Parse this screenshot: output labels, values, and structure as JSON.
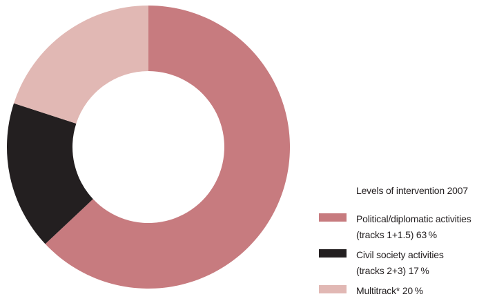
{
  "chart_data": {
    "type": "pie",
    "donut": true,
    "title": "",
    "legend_title": "Levels of intervention 2007",
    "legend_placement": "bottom-right",
    "series": [
      {
        "name_line1": "Political/diplomatic activities",
        "name_line2": "(tracks 1+1.5) 63 %",
        "value": 63,
        "color": "#c77b7f"
      },
      {
        "name_line1": "Civil society  activities",
        "name_line2": "(tracks 2+3) 17 %",
        "value": 17,
        "color": "#231f20"
      },
      {
        "name_line1": "Multitrack* 20 %",
        "name_line2": "",
        "value": 20,
        "color": "#e1b8b4"
      }
    ]
  }
}
